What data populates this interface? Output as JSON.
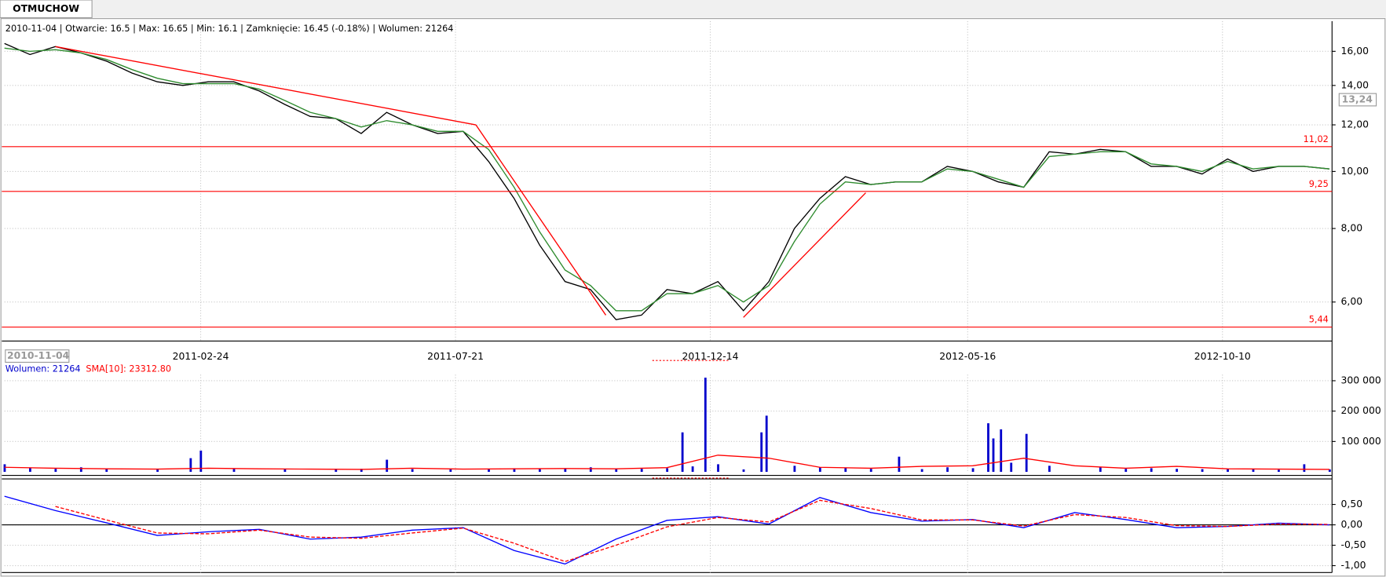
{
  "tab": "OTMUCHOW",
  "info": "2010-11-04 | Otwarcie: 16.5 | Max: 16.65 | Min: 16.1 | Zamknięcie: 16.45 (-0.18%)  | Wolumen: 21264",
  "chart_data": [
    {
      "type": "line",
      "log_y": true,
      "grid": true,
      "xlim": [
        0,
        521
      ],
      "ylim": [
        5.15,
        18.0
      ],
      "xticks": [
        {
          "value": 77,
          "label": "2011-02-24"
        },
        {
          "value": 177,
          "label": "2011-07-21"
        },
        {
          "value": 277,
          "label": "2011-12-14"
        },
        {
          "value": 378,
          "label": "2012-05-16"
        },
        {
          "value": 478,
          "label": "2012-10-10"
        }
      ],
      "yticks": [
        {
          "value": 6,
          "label": "6,00"
        },
        {
          "value": 8,
          "label": "8,00"
        },
        {
          "value": 10,
          "label": "10,00"
        },
        {
          "value": 12,
          "label": "12,00"
        },
        {
          "value": 14,
          "label": "14,00"
        },
        {
          "value": 16,
          "label": "16,00"
        }
      ],
      "x": [
        0,
        10,
        20,
        30,
        40,
        50,
        60,
        70,
        80,
        90,
        100,
        110,
        120,
        130,
        140,
        150,
        160,
        170,
        180,
        190,
        200,
        210,
        220,
        230,
        240,
        250,
        260,
        270,
        280,
        290,
        300,
        310,
        320,
        330,
        340,
        350,
        360,
        370,
        380,
        390,
        400,
        410,
        420,
        430,
        440,
        450,
        460,
        470,
        480,
        490,
        500,
        510,
        520
      ],
      "series": [
        {
          "color": "#000000",
          "values": [
            16.5,
            15.8,
            16.3,
            15.9,
            15.4,
            14.7,
            14.2,
            14.0,
            14.2,
            14.2,
            13.7,
            13.0,
            12.4,
            12.3,
            11.6,
            12.6,
            12.0,
            11.6,
            11.7,
            10.4,
            9.0,
            7.5,
            6.5,
            6.3,
            5.6,
            5.7,
            6.3,
            6.2,
            6.5,
            5.8,
            6.5,
            8.0,
            9.0,
            9.8,
            9.5,
            9.6,
            9.6,
            10.2,
            10.0,
            9.6,
            9.4,
            10.8,
            10.7,
            10.9,
            10.8,
            10.2,
            10.2,
            9.9,
            10.5,
            10.0,
            10.2,
            10.2,
            10.1
          ]
        },
        {
          "color": "#2e8b2e",
          "values": [
            16.2,
            16.0,
            16.1,
            15.9,
            15.5,
            14.9,
            14.4,
            14.1,
            14.1,
            14.1,
            13.8,
            13.2,
            12.6,
            12.3,
            11.9,
            12.2,
            12.0,
            11.7,
            11.7,
            10.9,
            9.4,
            7.9,
            6.8,
            6.4,
            5.8,
            5.8,
            6.2,
            6.2,
            6.4,
            6.0,
            6.4,
            7.6,
            8.8,
            9.6,
            9.5,
            9.6,
            9.6,
            10.1,
            10.0,
            9.7,
            9.4,
            10.6,
            10.7,
            10.8,
            10.8,
            10.3,
            10.2,
            10.0,
            10.4,
            10.1,
            10.2,
            10.2,
            10.1
          ]
        }
      ],
      "trend_color": "#ff0000",
      "trendlines": [
        {
          "x": [
            20,
            185
          ],
          "values": [
            16.3,
            12.0
          ]
        },
        {
          "x": [
            185,
            236
          ],
          "values": [
            12.0,
            5.7
          ]
        },
        {
          "x": [
            290,
            338
          ],
          "values": [
            5.65,
            9.2
          ]
        }
      ],
      "levels": [
        {
          "value": 11.02,
          "label": "11,02"
        },
        {
          "value": 9.25,
          "label": "9,25"
        },
        {
          "value": 5.44,
          "label": "5,44"
        }
      ],
      "cursor_value": {
        "value": 13.24,
        "label": "13,24"
      },
      "cursor_date": "2010-11-04"
    },
    {
      "type": "bar",
      "grid": true,
      "xlim": [
        0,
        521
      ],
      "ylim": [
        0,
        320000
      ],
      "yticks": [
        {
          "value": 100000,
          "label": "100 000"
        },
        {
          "value": 200000,
          "label": "200 000"
        },
        {
          "value": 300000,
          "label": "300 000"
        }
      ],
      "series": [
        {
          "name": "Wolumen: 21264",
          "color": "#0000cc",
          "x": [
            0,
            10,
            20,
            30,
            40,
            60,
            73,
            77,
            90,
            110,
            130,
            140,
            150,
            160,
            175,
            190,
            200,
            210,
            220,
            230,
            240,
            250,
            260,
            266,
            270,
            275,
            280,
            290,
            297,
            299,
            310,
            320,
            330,
            340,
            351,
            360,
            370,
            380,
            386,
            388,
            391,
            395,
            401,
            410,
            430,
            440,
            450,
            460,
            470,
            480,
            490,
            500,
            510,
            520
          ],
          "values": [
            25000,
            12000,
            10000,
            15000,
            10000,
            8000,
            45000,
            70000,
            9000,
            8000,
            10000,
            10000,
            40000,
            9000,
            8000,
            10000,
            12000,
            9000,
            10000,
            15000,
            9000,
            10000,
            12000,
            130000,
            18000,
            310000,
            25000,
            8000,
            130000,
            185000,
            20000,
            15000,
            12000,
            10000,
            50000,
            9000,
            15000,
            12000,
            160000,
            110000,
            140000,
            30000,
            125000,
            20000,
            15000,
            10000,
            12000,
            10000,
            9000,
            10000,
            8000,
            7000,
            25000,
            8000
          ]
        },
        {
          "name": "SMA[10]: 23312.80",
          "color": "#ff0000",
          "x": [
            0,
            20,
            40,
            60,
            80,
            100,
            120,
            140,
            160,
            180,
            200,
            220,
            240,
            260,
            280,
            300,
            320,
            340,
            360,
            380,
            400,
            420,
            440,
            460,
            480,
            500,
            520
          ],
          "values": [
            15000,
            12000,
            10000,
            9000,
            12000,
            10000,
            9000,
            8000,
            12000,
            9000,
            10000,
            11000,
            10000,
            14000,
            55000,
            45000,
            15000,
            12000,
            18000,
            20000,
            45000,
            20000,
            12000,
            18000,
            10000,
            9000,
            8000
          ]
        }
      ]
    },
    {
      "type": "line",
      "grid": true,
      "xlim": [
        0,
        521
      ],
      "ylim": [
        -1.17,
        1.06
      ],
      "yticks": [
        {
          "value": -1,
          "label": "-1,00"
        },
        {
          "value": -0.5,
          "label": "-0,50"
        },
        {
          "value": 0,
          "label": "0,00"
        },
        {
          "value": 0.5,
          "label": "0,50"
        }
      ],
      "x": [
        0,
        20,
        40,
        60,
        80,
        100,
        120,
        140,
        160,
        180,
        200,
        220,
        240,
        260,
        280,
        300,
        320,
        340,
        360,
        380,
        400,
        420,
        440,
        460,
        480,
        500,
        520
      ],
      "series": [
        {
          "color": "#0000ff",
          "values": [
            0.7,
            0.35,
            0.05,
            -0.26,
            -0.17,
            -0.11,
            -0.35,
            -0.3,
            -0.13,
            -0.07,
            -0.63,
            -0.96,
            -0.35,
            0.11,
            0.2,
            0.02,
            0.67,
            0.3,
            0.09,
            0.13,
            -0.07,
            0.3,
            0.13,
            -0.07,
            -0.04,
            0.04,
            0.0
          ]
        },
        {
          "color": "#ff0000",
          "dashed": true,
          "values": [
            null,
            0.45,
            0.12,
            -0.2,
            -0.22,
            -0.13,
            -0.3,
            -0.33,
            -0.2,
            -0.08,
            -0.45,
            -0.9,
            -0.5,
            -0.05,
            0.18,
            0.07,
            0.6,
            0.4,
            0.12,
            0.12,
            -0.03,
            0.25,
            0.18,
            -0.02,
            -0.04,
            0.02,
            0.01
          ]
        }
      ]
    }
  ]
}
